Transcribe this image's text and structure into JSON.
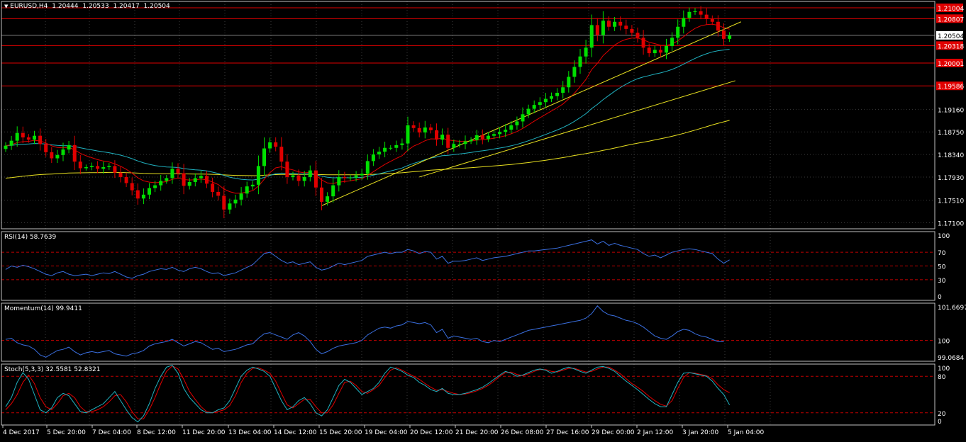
{
  "header": {
    "symbol": "EURUSD,H4",
    "open": "1.20444",
    "high": "1.20533",
    "low": "1.20417",
    "close": "1.20504"
  },
  "colors": {
    "background": "#000000",
    "grid": "#3a3a3a",
    "border": "#c0c0c0",
    "bull_candle": "#00e000",
    "bear_candle": "#e00000",
    "resistance_line": "#e00000",
    "ma_fast": "#e00000",
    "ma_mid": "#20b2c0",
    "ma_slow": "#e8e020",
    "trendline": "#e8e020",
    "indicator_line": "#3a6fe0",
    "stoch_signal": "#e00000",
    "stoch_main": "#20b2c0",
    "level_line": "#c00000"
  },
  "panels": {
    "price": {
      "label": ""
    },
    "rsi": {
      "label": "RSI(14) 58.7639"
    },
    "momentum": {
      "label": "Momentum(14) 99.9411"
    },
    "stoch": {
      "label": "Stoch(5,3,3) 32.5581 52.8321"
    }
  },
  "chart_data": [
    {
      "type": "candlestick",
      "title": "EURUSD,H4",
      "ylim": [
        1.1699,
        1.2112
      ],
      "y_ticks": [
        "1.19160",
        "1.18750",
        "1.18340",
        "1.17930",
        "1.17510",
        "1.17100"
      ],
      "y_tick_values": [
        1.1916,
        1.1875,
        1.1834,
        1.1793,
        1.1751,
        1.171
      ],
      "horizontal_levels": [
        {
          "value": 1.21004,
          "label": "1.21004",
          "color": "#e00000"
        },
        {
          "value": 1.20807,
          "label": "1.20807",
          "color": "#e00000"
        },
        {
          "value": 1.20318,
          "label": "1.20318",
          "color": "#e00000"
        },
        {
          "value": 1.20001,
          "label": "1.20001",
          "color": "#e00000"
        },
        {
          "value": 1.19586,
          "label": "1.19586",
          "color": "#e00000"
        }
      ],
      "current_price": {
        "value": 1.20504,
        "label": "1.20504"
      },
      "trendlines": [
        {
          "from_bar": 55,
          "from": 1.1741,
          "to_bar": 128,
          "to": 1.2075
        },
        {
          "from_bar": 72,
          "from": 1.1793,
          "to_bar": 127,
          "to": 1.1968
        }
      ],
      "x_tick_labels": [
        "4 Dec 2017",
        "5 Dec 20:00",
        "7 Dec 04:00",
        "8 Dec 12:00",
        "11 Dec 20:00",
        "13 Dec 04:00",
        "14 Dec 12:00",
        "15 Dec 20:00",
        "19 Dec 04:00",
        "20 Dec 12:00",
        "21 Dec 20:00",
        "26 Dec 08:00",
        "27 Dec 16:00",
        "29 Dec 00:00",
        "2 Jan 12:00",
        "3 Jan 20:00",
        "5 Jan 04:00"
      ],
      "closes": [
        1.185,
        1.1859,
        1.1873,
        1.1865,
        1.1861,
        1.1868,
        1.1853,
        1.1838,
        1.1827,
        1.1833,
        1.1843,
        1.1851,
        1.1821,
        1.1809,
        1.1811,
        1.1813,
        1.1808,
        1.1811,
        1.1813,
        1.1801,
        1.1793,
        1.1782,
        1.1769,
        1.1754,
        1.1761,
        1.1773,
        1.1778,
        1.1786,
        1.1791,
        1.1808,
        1.18,
        1.1777,
        1.1784,
        1.1791,
        1.1795,
        1.1781,
        1.1766,
        1.1759,
        1.1734,
        1.1745,
        1.1752,
        1.1763,
        1.1776,
        1.1779,
        1.1813,
        1.1845,
        1.1856,
        1.1848,
        1.1821,
        1.1793,
        1.1796,
        1.1786,
        1.1793,
        1.1805,
        1.1774,
        1.1748,
        1.1758,
        1.1778,
        1.1793,
        1.1791,
        1.1792,
        1.1796,
        1.1799,
        1.1822,
        1.1834,
        1.1839,
        1.1846,
        1.1846,
        1.1851,
        1.1854,
        1.1887,
        1.1882,
        1.1874,
        1.1883,
        1.1878,
        1.1861,
        1.187,
        1.1846,
        1.1853,
        1.1853,
        1.1858,
        1.186,
        1.1869,
        1.1862,
        1.1868,
        1.1871,
        1.1875,
        1.1879,
        1.1887,
        1.1894,
        1.1907,
        1.1917,
        1.1924,
        1.1929,
        1.1935,
        1.194,
        1.1946,
        1.1956,
        1.1975,
        1.1993,
        1.2012,
        1.2028,
        1.2069,
        1.2051,
        1.2077,
        1.2066,
        1.2075,
        1.2068,
        1.2062,
        1.2055,
        1.2046,
        1.2028,
        1.2018,
        1.2024,
        1.2019,
        1.2031,
        1.2046,
        1.2066,
        1.2082,
        1.2093,
        1.2094,
        1.2088,
        1.208,
        1.2075,
        1.2059,
        1.2044,
        1.205
      ]
    },
    {
      "type": "line",
      "title": "RSI(14) 58.7639",
      "ylim": [
        0,
        100
      ],
      "y_ticks": [
        "100",
        "70",
        "50",
        "30",
        "0"
      ],
      "y_tick_values": [
        100,
        70,
        50,
        30,
        0
      ],
      "levels": [
        70,
        50,
        30
      ],
      "values": [
        45,
        50,
        48,
        51,
        49,
        46,
        42,
        38,
        36,
        40,
        42,
        38,
        36,
        37,
        38,
        36,
        38,
        40,
        39,
        42,
        38,
        34,
        32,
        36,
        38,
        42,
        44,
        46,
        45,
        48,
        44,
        42,
        46,
        48,
        46,
        42,
        39,
        40,
        36,
        38,
        40,
        44,
        48,
        52,
        60,
        68,
        70,
        64,
        58,
        54,
        56,
        52,
        54,
        56,
        48,
        44,
        46,
        50,
        54,
        52,
        54,
        56,
        58,
        64,
        66,
        68,
        70,
        68,
        70,
        70,
        74,
        72,
        68,
        71,
        70,
        60,
        64,
        54,
        57,
        57,
        58,
        60,
        62,
        58,
        60,
        62,
        63,
        64,
        66,
        68,
        70,
        72,
        72,
        73,
        74,
        75,
        76,
        78,
        80,
        82,
        84,
        86,
        88,
        82,
        86,
        80,
        83,
        80,
        78,
        76,
        74,
        68,
        64,
        66,
        62,
        66,
        70,
        72,
        74,
        75,
        74,
        72,
        70,
        68,
        60,
        54,
        59
      ]
    },
    {
      "type": "line",
      "title": "Momentum(14) 99.9411",
      "ylim": [
        99.0684,
        101.6697
      ],
      "y_ticks": [
        "101.6697",
        "100",
        "99.0684"
      ],
      "y_tick_values": [
        101.6697,
        100,
        99.0684
      ],
      "levels": [
        100
      ],
      "values": [
        100.05,
        100.1,
        99.9,
        99.8,
        99.75,
        99.6,
        99.35,
        99.25,
        99.4,
        99.55,
        99.6,
        99.7,
        99.5,
        99.35,
        99.45,
        99.5,
        99.45,
        99.5,
        99.55,
        99.4,
        99.35,
        99.3,
        99.4,
        99.45,
        99.55,
        99.75,
        99.85,
        99.9,
        99.95,
        100.05,
        99.9,
        99.75,
        99.85,
        99.95,
        99.9,
        99.75,
        99.6,
        99.65,
        99.5,
        99.55,
        99.6,
        99.7,
        99.8,
        99.85,
        100.1,
        100.3,
        100.35,
        100.25,
        100.15,
        100.05,
        100.25,
        100.35,
        100.2,
        99.95,
        99.6,
        99.4,
        99.5,
        99.65,
        99.75,
        99.8,
        99.85,
        99.9,
        100.0,
        100.25,
        100.4,
        100.55,
        100.6,
        100.55,
        100.65,
        100.7,
        100.85,
        100.8,
        100.75,
        100.8,
        100.7,
        100.35,
        100.5,
        100.1,
        100.2,
        100.15,
        100.1,
        100.05,
        100.1,
        99.95,
        99.9,
        100.0,
        99.95,
        100.05,
        100.15,
        100.25,
        100.35,
        100.45,
        100.5,
        100.55,
        100.6,
        100.65,
        100.7,
        100.75,
        100.8,
        100.85,
        100.9,
        101.0,
        101.2,
        101.55,
        101.3,
        101.15,
        101.1,
        101.0,
        100.9,
        100.85,
        100.75,
        100.6,
        100.4,
        100.2,
        100.1,
        100.05,
        100.2,
        100.4,
        100.5,
        100.45,
        100.3,
        100.2,
        100.15,
        100.05,
        99.95,
        99.94
      ]
    },
    {
      "type": "line",
      "title": "Stoch(5,3,3) 32.5581 52.8321",
      "ylim": [
        0,
        100
      ],
      "y_ticks": [
        "100",
        "80",
        "20",
        "0"
      ],
      "y_tick_values": [
        100,
        80,
        20,
        0
      ],
      "levels": [
        80,
        20
      ],
      "series": [
        {
          "values": [
            30,
            45,
            70,
            86,
            75,
            50,
            25,
            20,
            28,
            45,
            52,
            48,
            35,
            22,
            20,
            25,
            30,
            35,
            45,
            55,
            40,
            25,
            12,
            5,
            15,
            35,
            60,
            80,
            95,
            98,
            85,
            60,
            45,
            35,
            25,
            20,
            20,
            25,
            28,
            40,
            60,
            80,
            90,
            95,
            92,
            88,
            80,
            60,
            40,
            25,
            30,
            40,
            45,
            35,
            20,
            15,
            25,
            45,
            65,
            75,
            70,
            60,
            50,
            55,
            60,
            70,
            85,
            95,
            92,
            88,
            82,
            78,
            70,
            65,
            58,
            55,
            60,
            52,
            50,
            50,
            52,
            55,
            58,
            62,
            68,
            75,
            82,
            88,
            85,
            80,
            82,
            86,
            90,
            92,
            90,
            85,
            88,
            92,
            95,
            92,
            88,
            85,
            90,
            95,
            96,
            93,
            88,
            80,
            72,
            65,
            58,
            50,
            42,
            35,
            30,
            30,
            50,
            70,
            85,
            86,
            84,
            82,
            80,
            72,
            60,
            50,
            33
          ]
        },
        {
          "values": [
            25,
            35,
            50,
            70,
            82,
            68,
            45,
            30,
            25,
            35,
            48,
            52,
            45,
            30,
            22,
            22,
            25,
            30,
            38,
            48,
            50,
            38,
            22,
            10,
            10,
            25,
            45,
            68,
            88,
            97,
            92,
            75,
            55,
            42,
            30,
            22,
            20,
            22,
            25,
            32,
            48,
            70,
            85,
            93,
            94,
            90,
            85,
            72,
            52,
            33,
            28,
            35,
            42,
            42,
            30,
            20,
            20,
            33,
            52,
            70,
            72,
            65,
            55,
            52,
            58,
            65,
            78,
            90,
            94,
            90,
            85,
            80,
            75,
            68,
            62,
            57,
            58,
            55,
            52,
            50,
            51,
            53,
            56,
            60,
            65,
            72,
            80,
            86,
            87,
            83,
            81,
            84,
            88,
            91,
            91,
            88,
            87,
            90,
            93,
            93,
            90,
            87,
            88,
            92,
            95,
            95,
            90,
            84,
            76,
            68,
            62,
            55,
            47,
            40,
            34,
            31,
            40,
            60,
            78,
            86,
            85,
            83,
            81,
            76,
            66,
            58,
            53
          ]
        }
      ]
    }
  ]
}
